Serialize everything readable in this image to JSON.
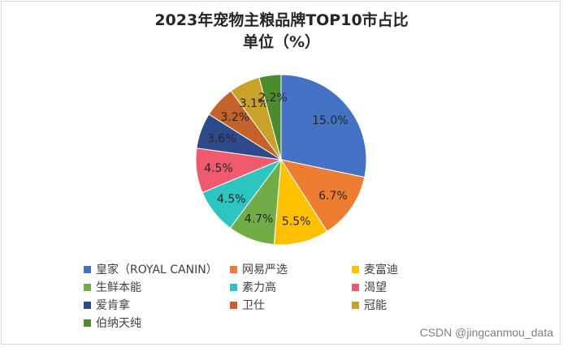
{
  "chart_data": {
    "type": "pie",
    "title": "2023年宠物主粮品牌TOP10市占比",
    "subtitle": "单位（%）",
    "slices": [
      {
        "name": "皇家（ROYAL CANIN）",
        "value": 15.0,
        "label": "15.0%",
        "color": "#4472c4"
      },
      {
        "name": "网易严选",
        "value": 6.7,
        "label": "6.7%",
        "color": "#ed7d31"
      },
      {
        "name": "麦富迪",
        "value": 5.5,
        "label": "5.5%",
        "color": "#ffc000"
      },
      {
        "name": "生鲜本能",
        "value": 4.7,
        "label": "4.7%",
        "color": "#70ad47"
      },
      {
        "name": "素力高",
        "value": 4.5,
        "label": "4.5%",
        "color": "#2cc5c0"
      },
      {
        "name": "渴望",
        "value": 4.5,
        "label": "4.5%",
        "color": "#f05a6e"
      },
      {
        "name": "爱肯拿",
        "value": 3.6,
        "label": "3.6%",
        "color": "#2f4a8a"
      },
      {
        "name": "卫仕",
        "value": 3.2,
        "label": "3.2%",
        "color": "#c5622a"
      },
      {
        "name": "冠能",
        "value": 3.1,
        "label": "3.1%",
        "color": "#c9a227"
      },
      {
        "name": "伯纳天纯",
        "value": 2.2,
        "label": "2.2%",
        "color": "#4e8a2e"
      }
    ],
    "legend_position": "bottom"
  },
  "watermark": "CSDN @jingcanmou_data"
}
